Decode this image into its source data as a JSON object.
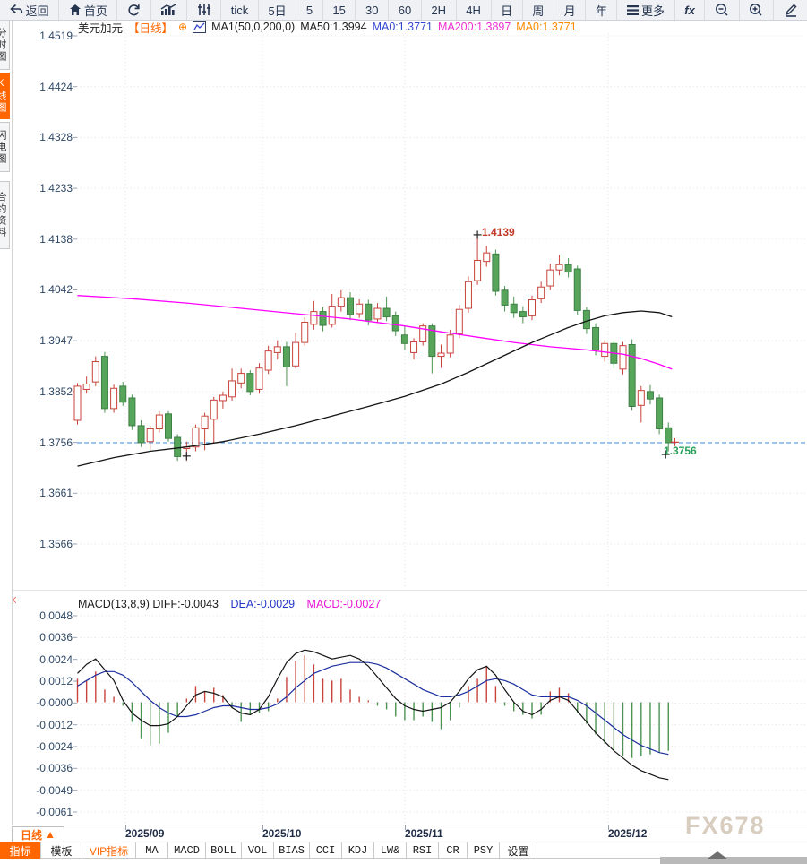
{
  "toolbar": {
    "items": [
      {
        "label": "返回",
        "icon": "back-icon"
      },
      {
        "label": "首页",
        "icon": "home-icon"
      },
      {
        "label": "",
        "icon": "refresh-icon"
      },
      {
        "label": "",
        "icon": "area-chart-icon"
      },
      {
        "label": "",
        "icon": "candlestick-icon"
      },
      {
        "label": "tick",
        "icon": ""
      },
      {
        "label": "5日",
        "icon": ""
      },
      {
        "label": "5",
        "icon": ""
      },
      {
        "label": "15",
        "icon": ""
      },
      {
        "label": "30",
        "icon": ""
      },
      {
        "label": "60",
        "icon": ""
      },
      {
        "label": "2H",
        "icon": ""
      },
      {
        "label": "4H",
        "icon": ""
      },
      {
        "label": "日",
        "icon": ""
      },
      {
        "label": "周",
        "icon": ""
      },
      {
        "label": "月",
        "icon": ""
      },
      {
        "label": "年",
        "icon": ""
      },
      {
        "label": "更多",
        "icon": "menu-icon"
      },
      {
        "label": "fx",
        "icon": "formula-icon"
      },
      {
        "label": "",
        "icon": "zoom-out-icon"
      },
      {
        "label": "",
        "icon": "zoom-in-icon"
      },
      {
        "label": "",
        "icon": "draw-pencil-icon"
      }
    ]
  },
  "sidebar": {
    "tabs": [
      {
        "label": "分时图",
        "active": false
      },
      {
        "label": "K线图",
        "active": true
      },
      {
        "label": "闪电图",
        "active": false
      },
      {
        "label": "合约资料",
        "active": false
      }
    ]
  },
  "chart_header": {
    "symbol": "美元加元",
    "period": "【日线】",
    "add_indicator": "⊕",
    "ma_setting": "MA1(50,0,200,0)",
    "ma50": "MA50:1.3994",
    "ma0_blue": "MA0:1.3771",
    "ma200": "MA200:1.3897",
    "ma0_orange": "MA0:1.3771"
  },
  "macd_header": {
    "title_and_diff": "MACD(13,8,9) DIFF:-0.0043",
    "dea": "DEA:-0.0029",
    "macd": "MACD:-0.0027"
  },
  "price_tags": {
    "high": "1.4139",
    "last": "1.3756"
  },
  "x_axis": {
    "period_button": "日线",
    "period_arrow": "▲",
    "labels": [
      "2025/09",
      "2025/10",
      "2025/11",
      "2025/12"
    ]
  },
  "bottom_tabs": [
    "指标",
    "模板",
    "VIP指标",
    "MA",
    "MACD",
    "BOLL",
    "VOL",
    "BIAS",
    "CCI",
    "KDJ",
    "LW&",
    "RSI",
    "CR",
    "PSY",
    "设置"
  ],
  "watermark": "FX678",
  "colors": {
    "accent_orange": "#ff6600",
    "candle_up": "#c8433b",
    "candle_down": "#57a45b",
    "ma50": "#141414",
    "ma200": "#ff00ff",
    "dea_line": "#1b2f9e",
    "price_line": "#3f8fdc",
    "high_tag": "#c0392b",
    "last_tag": "#2aa05a"
  },
  "chart_data": {
    "type": "candlestick",
    "symbol": "美元加元",
    "interval": "日线",
    "y_axis_labels_main": [
      "1.4519",
      "1.4424",
      "1.4328",
      "1.4233",
      "1.4138",
      "1.4042",
      "1.3947",
      "1.3852",
      "1.3756",
      "1.3661",
      "1.3566"
    ],
    "y_axis_labels_macd": [
      "0.0048",
      "0.0036",
      "0.0024",
      "0.0012",
      "-0.0000",
      "-0.0012",
      "-0.0024",
      "-0.0036",
      "-0.0049",
      "-0.0061"
    ],
    "x_axis_labels": [
      "2025/09",
      "2025/10",
      "2025/11",
      "2025/12"
    ],
    "main_range": [
      1.3566,
      1.4519
    ],
    "macd_range": [
      -0.0061,
      0.0048
    ],
    "price_line": 1.3756,
    "high_price": 1.4139,
    "last_price": 1.3756,
    "candles": [
      [
        1.3798,
        1.3868,
        1.379,
        1.3862
      ],
      [
        1.3856,
        1.388,
        1.3848,
        1.3866
      ],
      [
        1.387,
        1.3918,
        1.3862,
        1.3908
      ],
      [
        1.3918,
        1.3926,
        1.3812,
        1.382
      ],
      [
        1.382,
        1.3865,
        1.3812,
        1.3858
      ],
      [
        1.3862,
        1.387,
        1.3825,
        1.3832
      ],
      [
        1.384,
        1.3846,
        1.378,
        1.3788
      ],
      [
        1.3788,
        1.3798,
        1.3748,
        1.3756
      ],
      [
        1.3758,
        1.3788,
        1.3742,
        1.3782
      ],
      [
        1.3782,
        1.3815,
        1.3775,
        1.3808
      ],
      [
        1.381,
        1.3815,
        1.3758,
        1.3764
      ],
      [
        1.3766,
        1.3772,
        1.3722,
        1.373
      ],
      [
        1.3745,
        1.3758,
        1.3722,
        1.3748
      ],
      [
        1.3748,
        1.379,
        1.374,
        1.3784
      ],
      [
        1.3782,
        1.3812,
        1.3742,
        1.3806
      ],
      [
        1.38,
        1.3842,
        1.3755,
        1.3836
      ],
      [
        1.3835,
        1.3852,
        1.382,
        1.3845
      ],
      [
        1.3842,
        1.3895,
        1.3835,
        1.3872
      ],
      [
        1.3868,
        1.3895,
        1.3858,
        1.3886
      ],
      [
        1.3886,
        1.3892,
        1.3845,
        1.3852
      ],
      [
        1.3856,
        1.3905,
        1.3848,
        1.3896
      ],
      [
        1.3892,
        1.3938,
        1.3885,
        1.3928
      ],
      [
        1.3925,
        1.3948,
        1.3912,
        1.3936
      ],
      [
        1.3936,
        1.3945,
        1.3862,
        1.3898
      ],
      [
        1.39,
        1.3962,
        1.3895,
        1.3944
      ],
      [
        1.3944,
        1.3992,
        1.3938,
        1.3982
      ],
      [
        1.3978,
        1.4022,
        1.3968,
        1.4002
      ],
      [
        1.4002,
        1.401,
        1.3965,
        1.3976
      ],
      [
        1.3978,
        1.4035,
        1.3972,
        1.4012
      ],
      [
        1.4012,
        1.4042,
        1.4002,
        1.4028
      ],
      [
        1.4028,
        1.4038,
        1.3986,
        1.3996
      ],
      [
        1.3998,
        1.4025,
        1.399,
        1.4016
      ],
      [
        1.4016,
        1.4024,
        1.3976,
        1.3986
      ],
      [
        1.3988,
        1.4018,
        1.3982,
        1.4008
      ],
      [
        1.4008,
        1.403,
        1.3984,
        1.3992
      ],
      [
        1.3994,
        1.4002,
        1.3956,
        1.3966
      ],
      [
        1.3958,
        1.3975,
        1.393,
        1.3942
      ],
      [
        1.3925,
        1.3952,
        1.3912,
        1.3945
      ],
      [
        1.3945,
        1.398,
        1.3938,
        1.3975
      ],
      [
        1.3975,
        1.398,
        1.3886,
        1.3918
      ],
      [
        1.3918,
        1.394,
        1.3896,
        1.3924
      ],
      [
        1.3924,
        1.3968,
        1.3916,
        1.3958
      ],
      [
        1.396,
        1.4015,
        1.3952,
        1.4006
      ],
      [
        1.4008,
        1.4068,
        1.4,
        1.4058
      ],
      [
        1.406,
        1.4139,
        1.4052,
        1.4098
      ],
      [
        1.4096,
        1.4125,
        1.4086,
        1.4112
      ],
      [
        1.411,
        1.4118,
        1.4032,
        1.404
      ],
      [
        1.4042,
        1.405,
        1.4002,
        1.4014
      ],
      [
        1.4016,
        1.403,
        1.399,
        1.4
      ],
      [
        1.4002,
        1.4012,
        1.398,
        1.3992
      ],
      [
        1.3994,
        1.4032,
        1.3986,
        1.4024
      ],
      [
        1.4026,
        1.4058,
        1.4018,
        1.4048
      ],
      [
        1.405,
        1.4092,
        1.4042,
        1.408
      ],
      [
        1.408,
        1.4108,
        1.407,
        1.409
      ],
      [
        1.409,
        1.4102,
        1.4066,
        1.4076
      ],
      [
        1.4082,
        1.4088,
        1.3996,
        1.4004
      ],
      [
        1.4004,
        1.401,
        1.396,
        1.397
      ],
      [
        1.3972,
        1.398,
        1.392,
        1.393
      ],
      [
        1.3918,
        1.3948,
        1.3908,
        1.3942
      ],
      [
        1.3942,
        1.3948,
        1.3896,
        1.3905
      ],
      [
        1.3894,
        1.3945,
        1.3884,
        1.3938
      ],
      [
        1.394,
        1.395,
        1.3816,
        1.3824
      ],
      [
        1.3826,
        1.3862,
        1.3794,
        1.3854
      ],
      [
        1.3852,
        1.3864,
        1.3828,
        1.3838
      ],
      [
        1.384,
        1.3846,
        1.3772,
        1.3782
      ],
      [
        1.3784,
        1.3794,
        1.374,
        1.3756
      ]
    ],
    "ma50_points": [
      [
        0,
        1.3712
      ],
      [
        4,
        1.3728
      ],
      [
        8,
        1.374
      ],
      [
        12,
        1.3748
      ],
      [
        16,
        1.3758
      ],
      [
        20,
        1.3772
      ],
      [
        24,
        1.3788
      ],
      [
        28,
        1.3806
      ],
      [
        32,
        1.3824
      ],
      [
        36,
        1.3843
      ],
      [
        40,
        1.3866
      ],
      [
        43,
        1.3888
      ],
      [
        46,
        1.3912
      ],
      [
        48,
        1.3928
      ],
      [
        50,
        1.3944
      ],
      [
        52,
        1.3958
      ],
      [
        54,
        1.3972
      ],
      [
        56,
        1.3984
      ],
      [
        58,
        1.3994
      ],
      [
        60,
        1.4
      ],
      [
        62,
        1.4003
      ],
      [
        64,
        1.4
      ],
      [
        65.4,
        1.3992
      ]
    ],
    "ma200_points": [
      [
        0,
        1.4032
      ],
      [
        6,
        1.4026
      ],
      [
        12,
        1.4018
      ],
      [
        18,
        1.4008
      ],
      [
        24,
        1.3998
      ],
      [
        30,
        1.3988
      ],
      [
        36,
        1.3975
      ],
      [
        40,
        1.3964
      ],
      [
        44,
        1.3954
      ],
      [
        48,
        1.3944
      ],
      [
        52,
        1.3936
      ],
      [
        56,
        1.393
      ],
      [
        60,
        1.3922
      ],
      [
        62,
        1.3914
      ],
      [
        64,
        1.3903
      ],
      [
        65.4,
        1.3894
      ]
    ],
    "macd": {
      "unit": 0.0001,
      "hist": [
        13,
        12,
        17,
        7,
        3,
        -2,
        -11,
        -20,
        -24,
        -23,
        -17,
        -8,
        2,
        9,
        6,
        8,
        4,
        -3,
        -11,
        -7,
        -6,
        -5,
        2,
        14,
        23,
        26,
        21,
        13,
        12,
        13,
        7,
        3,
        1,
        -2,
        -4,
        -8,
        -10,
        -10,
        -8,
        -11,
        -15,
        -10,
        -3,
        9,
        13,
        20,
        9,
        -2,
        -5,
        -7,
        -9,
        -7,
        6,
        8,
        5,
        -6,
        -12,
        -18,
        -23,
        -27,
        -30,
        -31,
        -30,
        -29,
        -28,
        -27
      ],
      "diff": [
        16,
        21,
        24,
        18,
        12,
        1,
        -6,
        -10,
        -13,
        -13,
        -12,
        -8,
        -2,
        4,
        6,
        5,
        3,
        -3,
        -6,
        -7,
        -4,
        3,
        13,
        22,
        27,
        29,
        28,
        26,
        24,
        25,
        26,
        24,
        20,
        14,
        8,
        2,
        -2,
        -4,
        -5,
        -4,
        -3,
        0,
        6,
        13,
        18,
        20,
        15,
        7,
        0,
        -5,
        -7,
        -4,
        1,
        3,
        1,
        -5,
        -11,
        -17,
        -22,
        -27,
        -31,
        -35,
        -38,
        -40,
        -42,
        -43
      ],
      "dea": [
        9,
        12,
        15,
        17,
        17,
        15,
        11,
        6,
        1,
        -3,
        -6,
        -8,
        -8,
        -7,
        -5,
        -3,
        -2,
        -2,
        -3,
        -4,
        -4,
        -3,
        -1,
        3,
        8,
        12,
        16,
        18,
        20,
        21,
        22,
        22,
        22,
        21,
        19,
        16,
        13,
        10,
        7,
        5,
        3,
        3,
        4,
        6,
        9,
        12,
        13,
        12,
        10,
        7,
        4,
        3,
        3,
        3,
        3,
        1,
        -2,
        -6,
        -10,
        -14,
        -18,
        -21,
        -24,
        -26,
        -28,
        -29
      ]
    },
    "markers": [
      {
        "i": 12,
        "price": 1.3731,
        "color": "#222222"
      },
      {
        "i": 44,
        "price": 1.4146,
        "color": "#222222"
      },
      {
        "i": 64.7,
        "price": 1.3734,
        "color": "#222222"
      },
      {
        "i": 65.7,
        "price": 1.3757,
        "color": "#cf3b33"
      }
    ]
  }
}
